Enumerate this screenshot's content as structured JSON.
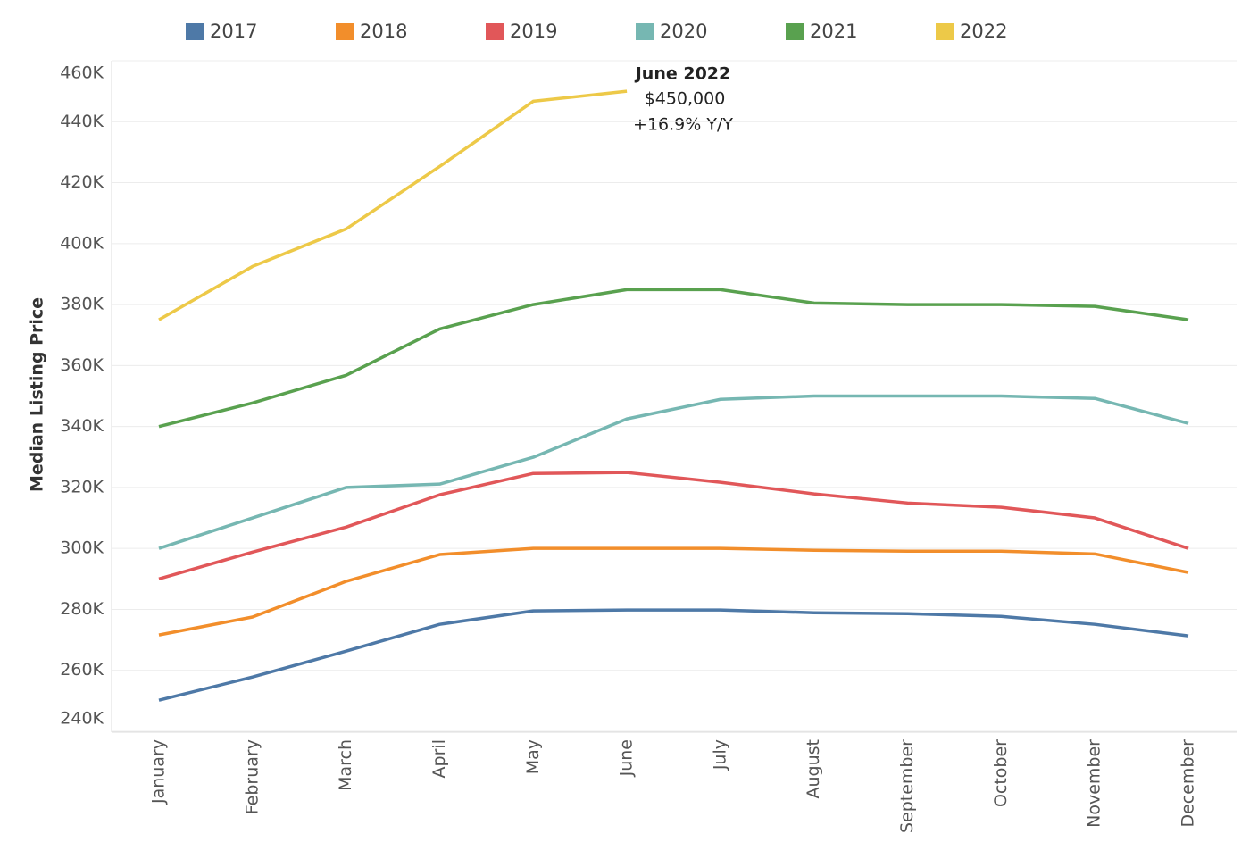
{
  "chart_data": {
    "type": "line",
    "y_label": "Median Listing Price",
    "categories": [
      "January",
      "February",
      "March",
      "April",
      "May",
      "June",
      "July",
      "August",
      "September",
      "October",
      "November",
      "December"
    ],
    "series": [
      {
        "name": "2017",
        "color": "#4e79a7",
        "values": [
          250200,
          257800,
          266300,
          275100,
          279500,
          279800,
          279800,
          278900,
          278600,
          277700,
          275100,
          271300
        ]
      },
      {
        "name": "2018",
        "color": "#f28e2b",
        "values": [
          271600,
          277500,
          289200,
          298000,
          300000,
          300000,
          300000,
          299400,
          299100,
          299100,
          298200,
          292100
        ]
      },
      {
        "name": "2019",
        "color": "#e15759",
        "values": [
          290000,
          298800,
          307000,
          317600,
          324600,
          324900,
          321700,
          317900,
          314900,
          313500,
          310000,
          300000
        ]
      },
      {
        "name": "2020",
        "color": "#76b7b2",
        "values": [
          300000,
          310000,
          320000,
          321100,
          329900,
          342500,
          348900,
          350000,
          350000,
          350000,
          349200,
          341000
        ]
      },
      {
        "name": "2021",
        "color": "#59a14f",
        "values": [
          340000,
          347700,
          356800,
          372000,
          380000,
          384900,
          384900,
          380500,
          380000,
          380000,
          379400,
          375000
        ]
      },
      {
        "name": "2022",
        "color": "#edc948",
        "values": [
          375000,
          392500,
          404800,
          425300,
          446700,
          450000,
          null,
          null,
          null,
          null,
          null,
          null
        ]
      }
    ],
    "ylim": [
      240000,
      460000
    ],
    "yticks": [
      {
        "value": 240000,
        "label": "240K"
      },
      {
        "value": 260000,
        "label": "260K"
      },
      {
        "value": 280000,
        "label": "280K"
      },
      {
        "value": 300000,
        "label": "300K"
      },
      {
        "value": 320000,
        "label": "320K"
      },
      {
        "value": 340000,
        "label": "340K"
      },
      {
        "value": 360000,
        "label": "360K"
      },
      {
        "value": 380000,
        "label": "380K"
      },
      {
        "value": 400000,
        "label": "400K"
      },
      {
        "value": 420000,
        "label": "420K"
      },
      {
        "value": 440000,
        "label": "440K"
      },
      {
        "value": 460000,
        "label": "460K"
      }
    ],
    "grid": true,
    "legend": "top",
    "annotation": {
      "title": "June 2022",
      "value": "$450,000",
      "change": "+16.9% Y/Y"
    }
  }
}
